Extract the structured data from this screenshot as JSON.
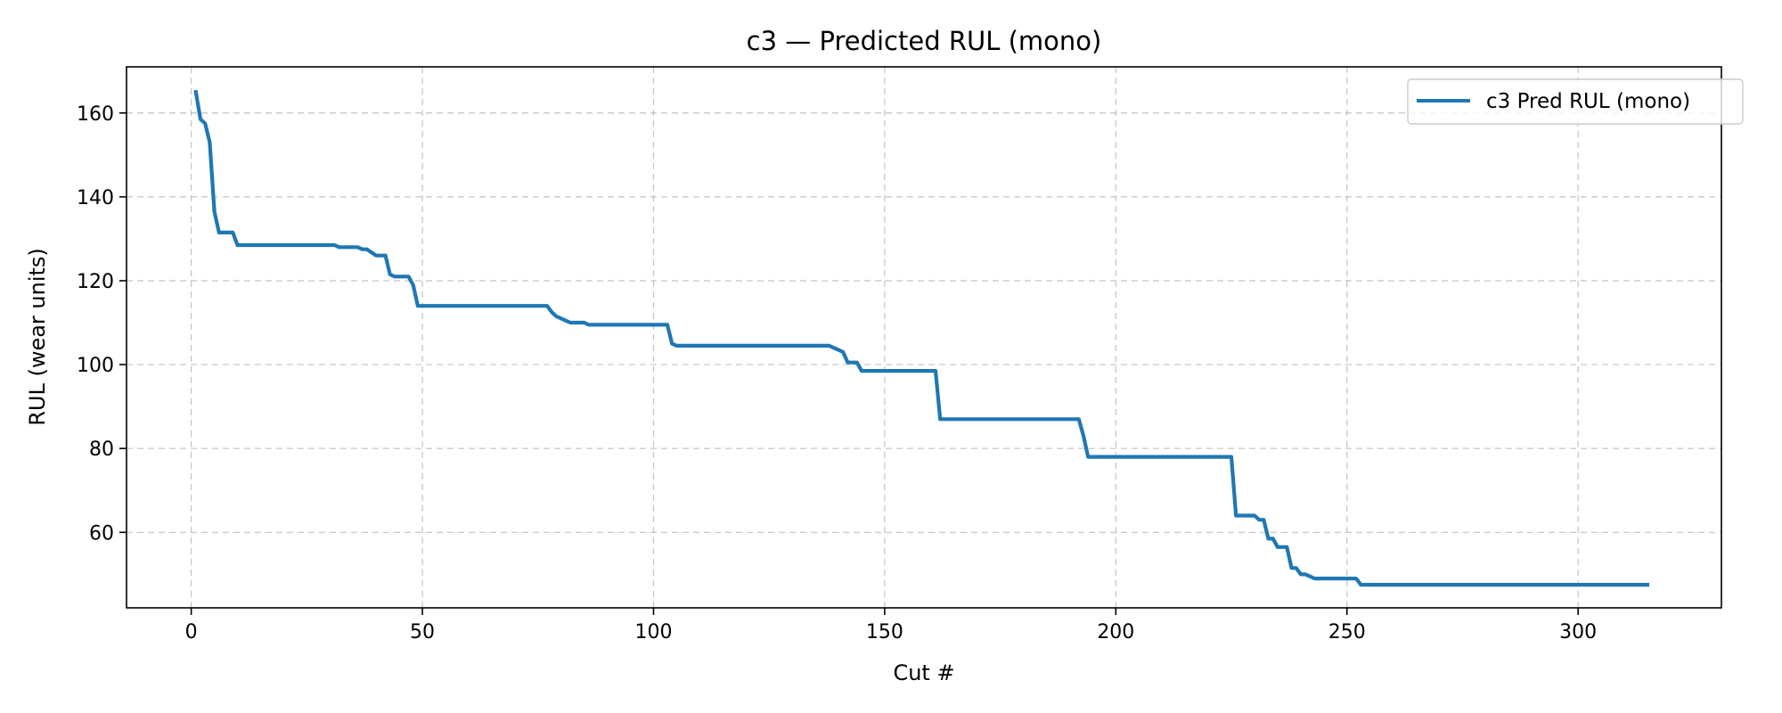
{
  "chart_data": {
    "type": "line",
    "title": "c3 — Predicted RUL (mono)",
    "xlabel": "Cut #",
    "ylabel": "RUL (wear units)",
    "xlim": [
      -14,
      331
    ],
    "ylim": [
      42,
      171
    ],
    "xticks": [
      0,
      50,
      100,
      150,
      200,
      250,
      300
    ],
    "yticks": [
      60,
      80,
      100,
      120,
      140,
      160
    ],
    "grid": true,
    "legend_position": "top-right",
    "colors": {
      "series": "#1f77b4"
    },
    "series": [
      {
        "name": "c3 Pred RUL (mono)",
        "x": [
          1,
          2,
          3,
          4,
          5,
          6,
          7,
          8,
          9,
          10,
          30,
          31,
          32,
          36,
          37,
          38,
          40,
          41,
          42,
          43,
          44,
          45,
          46,
          47,
          48,
          49,
          76,
          77,
          78,
          79,
          80,
          81,
          82,
          83,
          84,
          85,
          86,
          102,
          103,
          104,
          105,
          138,
          139,
          140,
          141,
          142,
          143,
          144,
          145,
          160,
          161,
          162,
          192,
          193,
          194,
          225,
          226,
          227,
          230,
          231,
          232,
          233,
          234,
          235,
          237,
          238,
          239,
          240,
          241,
          242,
          243,
          251,
          252,
          253,
          315
        ],
        "y": [
          165,
          158.5,
          157.5,
          153,
          136.5,
          131.5,
          131.5,
          131.5,
          131.5,
          128.5,
          128.5,
          128.5,
          128,
          128,
          127.5,
          127.5,
          126,
          126,
          126,
          121.5,
          121,
          121,
          121,
          121,
          119,
          114,
          114,
          114,
          112.5,
          111.5,
          111,
          110.5,
          110,
          110,
          110,
          110,
          109.5,
          109.5,
          109.5,
          105,
          104.5,
          104.5,
          104,
          103.5,
          103,
          100.5,
          100.5,
          100.5,
          98.5,
          98.5,
          98.5,
          87,
          87,
          83,
          78,
          78,
          64,
          64,
          64,
          63,
          63,
          58.5,
          58.5,
          56.5,
          56.5,
          51.5,
          51.5,
          50,
          50,
          49.5,
          49,
          49,
          49,
          47.5,
          47.5
        ]
      }
    ]
  }
}
